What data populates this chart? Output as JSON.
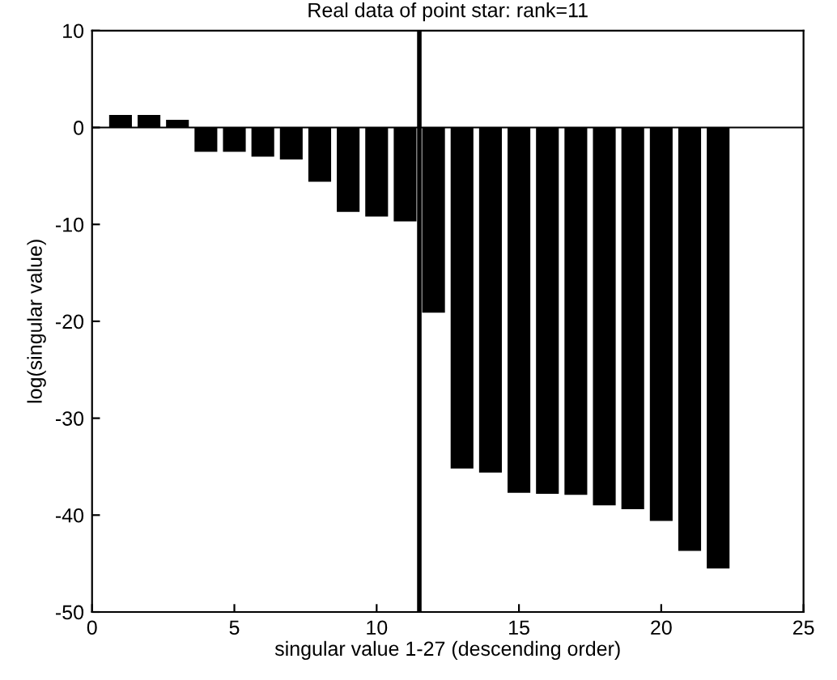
{
  "chart_data": {
    "type": "bar",
    "title": "Real data of point star: rank=11",
    "xlabel": "singular value 1-27 (descending order)",
    "ylabel": "log(singular value)",
    "x": [
      1,
      2,
      3,
      4,
      5,
      6,
      7,
      8,
      9,
      10,
      11,
      12,
      13,
      14,
      15,
      16,
      17,
      18,
      19,
      20,
      21,
      22
    ],
    "values": [
      1.3,
      1.3,
      0.8,
      -2.5,
      -2.5,
      -3.0,
      -3.3,
      -5.6,
      -8.7,
      -9.2,
      -9.7,
      -19.1,
      -35.2,
      -35.6,
      -37.7,
      -37.8,
      -37.9,
      -39.0,
      -39.4,
      -40.6,
      -43.7,
      -45.5
    ],
    "color": "#000000",
    "xlim": [
      0,
      25
    ],
    "xticks": [
      0,
      5,
      10,
      15,
      20,
      25
    ],
    "ylim": [
      -50,
      10
    ],
    "yticks": [
      -50,
      -40,
      -30,
      -20,
      -10,
      0,
      10
    ],
    "ref_lines": [
      {
        "axis": "x",
        "value": 11.5,
        "color": "#000000"
      },
      {
        "axis": "y",
        "value": 0,
        "color": "#000000"
      }
    ],
    "grid": false,
    "legend": false
  }
}
